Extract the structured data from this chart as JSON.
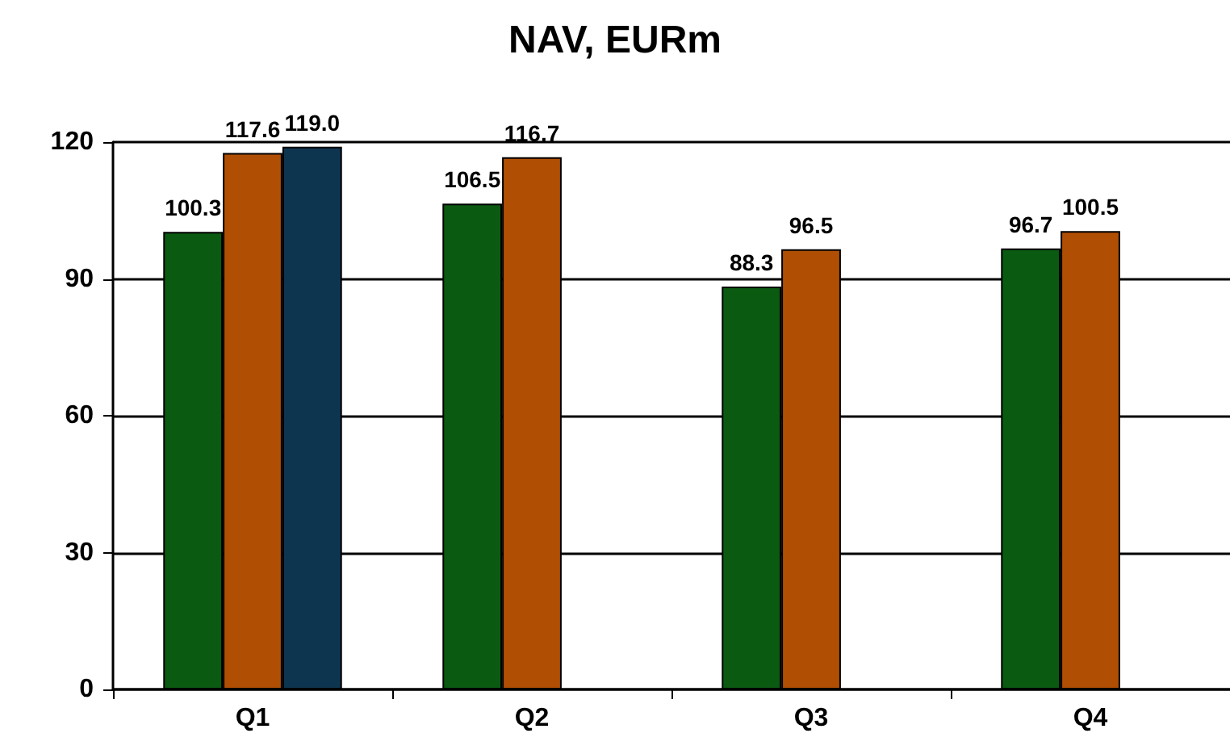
{
  "chart_data": {
    "type": "bar",
    "title": "NAV, EURm",
    "categories": [
      "Q1",
      "Q2",
      "Q3",
      "Q4"
    ],
    "series": [
      {
        "color": "#0b5a12",
        "values": [
          100.3,
          106.5,
          88.3,
          96.7
        ],
        "value_labels": [
          "100.3",
          "106.5",
          "88.3",
          "96.7"
        ]
      },
      {
        "color": "#b04f04",
        "values": [
          117.6,
          116.7,
          96.5,
          100.5
        ],
        "value_labels": [
          "117.6",
          "116.7",
          "96.5",
          "100.5"
        ]
      },
      {
        "color": "#0e3550",
        "values": [
          119.0,
          null,
          null,
          null
        ],
        "value_labels": [
          "119.0",
          null,
          null,
          null
        ]
      }
    ],
    "ylim": [
      0,
      120
    ],
    "yticks": [
      0,
      30,
      60,
      90,
      120
    ],
    "grid": "y"
  }
}
